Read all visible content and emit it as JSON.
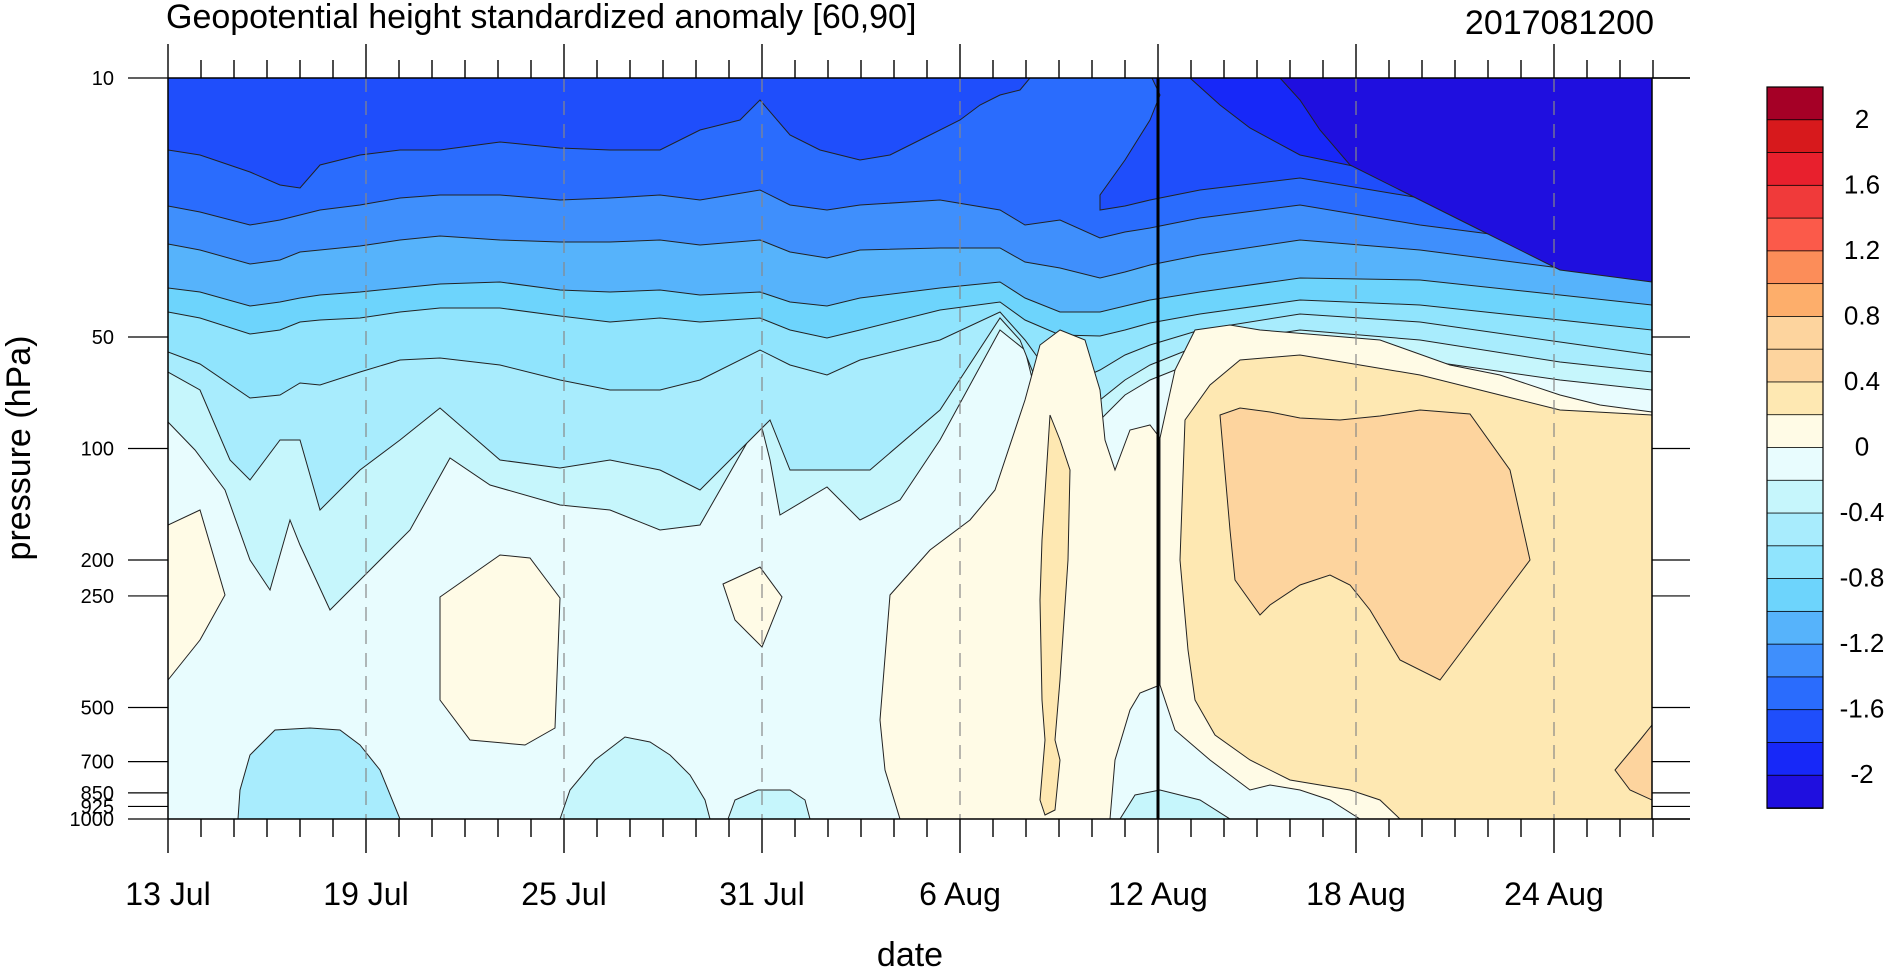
{
  "chart_data": {
    "type": "heatmap",
    "title": "Geopotential height standardized anomaly [60,90]",
    "date_label": "2017081200",
    "xlabel": "date",
    "ylabel": "pressure (hPa)",
    "x_tick_labels": [
      "13 Jul",
      "19 Jul",
      "25 Jul",
      "31 Jul",
      "6 Aug",
      "12 Aug",
      "18 Aug",
      "24 Aug"
    ],
    "x_tick_days": [
      0,
      6,
      12,
      18,
      24,
      30,
      36,
      42
    ],
    "x_range_days": [
      0,
      45
    ],
    "y_tick_labels": [
      "10",
      "50",
      "100",
      "200",
      "250",
      "500",
      "700",
      "850",
      "925",
      "1000"
    ],
    "y_tick_values": [
      10,
      50,
      100,
      200,
      250,
      500,
      700,
      850,
      925,
      1000
    ],
    "y_scale": "log, reversed (10 at top, 1000 at bottom)",
    "vertical_marker_label": "12 Aug",
    "vertical_marker_day": 30,
    "contour_levels": [
      -2.2,
      -2.0,
      -1.8,
      -1.6,
      -1.4,
      -1.2,
      -1.0,
      -0.8,
      -0.6,
      -0.4,
      -0.2,
      0,
      0.2,
      0.4,
      0.6,
      0.8,
      1.0,
      1.2,
      1.4,
      1.6,
      1.8,
      2.0,
      2.2
    ],
    "colorbar_labels": [
      "2",
      "1.6",
      "1.2",
      "0.8",
      "0.4",
      "0",
      "-0.4",
      "-0.8",
      "-1.2",
      "-1.6",
      "-2"
    ],
    "colorbar_colors": [
      "#a50026",
      "#d7191c",
      "#e8202d",
      "#f03a3a",
      "#fb5a4a",
      "#fc8d59",
      "#fdae6b",
      "#fdd49e",
      "#fdd49e",
      "#fee8b2",
      "#fffbe6",
      "#e8fcfe",
      "#c6f6fc",
      "#a8ecfd",
      "#90e4fd",
      "#6dd4fc",
      "#56b3fb",
      "#3f8ffc",
      "#2a6cfd",
      "#1f4efb",
      "#1728f8",
      "#1f0fdf"
    ],
    "grid": "dashed vertical lines at date ticks",
    "legend_placement": "right (vertical colorbar)",
    "series": [
      {
        "label": "13 Jul",
        "values": [
          -1.6,
          -0.6,
          -0.4,
          0.05,
          0.05,
          -0.2,
          -0.4,
          -0.4,
          -0.4,
          -0.4
        ]
      },
      {
        "label": "19 Jul",
        "values": [
          -1.8,
          -0.8,
          -0.5,
          -0.2,
          -0.2,
          -0.3,
          -0.5,
          -0.6,
          -0.6,
          -0.6
        ]
      },
      {
        "label": "25 Jul",
        "values": [
          -1.8,
          -0.8,
          -0.4,
          -0.1,
          0.05,
          0.05,
          -0.2,
          -0.3,
          -0.3,
          -0.3
        ]
      },
      {
        "label": "31 Jul",
        "values": [
          -1.8,
          -0.6,
          -0.2,
          -0.1,
          0.05,
          -0.1,
          -0.2,
          -0.3,
          -0.3,
          -0.3
        ]
      },
      {
        "label": "6 Aug",
        "values": [
          -1.4,
          -0.4,
          -0.1,
          0.05,
          0.05,
          0.1,
          0.1,
          0.1,
          0.1,
          0.1
        ]
      },
      {
        "label": "12 Aug",
        "values": [
          -1.6,
          -0.2,
          0.05,
          0.3,
          0.3,
          0.2,
          0.0,
          -0.1,
          -0.1,
          -0.1
        ]
      },
      {
        "label": "18 Aug",
        "values": [
          -2.2,
          0.1,
          0.6,
          0.6,
          0.6,
          0.4,
          0.2,
          0.1,
          0.05,
          0.05
        ]
      },
      {
        "label": "24 Aug",
        "values": [
          -2.2,
          -0.8,
          0.05,
          0.3,
          0.35,
          0.3,
          0.3,
          0.25,
          0.25,
          0.25
        ]
      }
    ]
  }
}
